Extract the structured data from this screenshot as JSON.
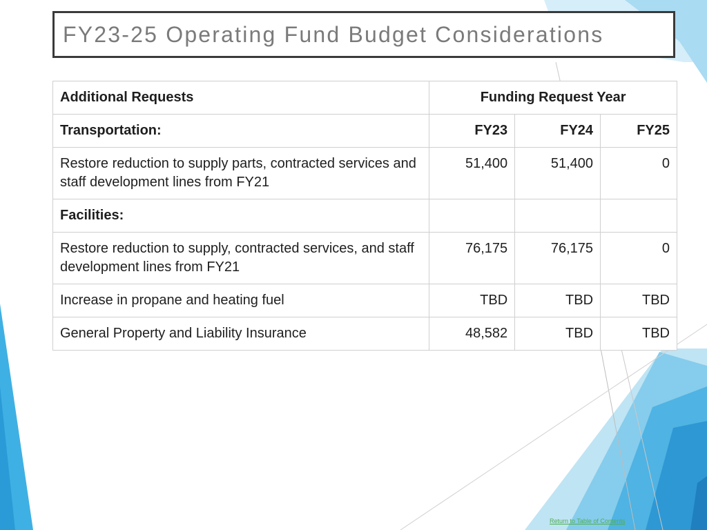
{
  "title": "FY23-25 Operating Fund Budget Considerations",
  "table": {
    "header": {
      "col1": "Additional Requests",
      "col2": "Funding Request Year"
    },
    "rows": [
      {
        "label": "Transportation:",
        "bold": true,
        "fy23": "FY23",
        "fy24": "FY24",
        "fy25": "FY25"
      },
      {
        "label": "Restore reduction to supply parts, contracted services and staff development lines from FY21",
        "fy23": "51,400",
        "fy24": "51,400",
        "fy25": "0"
      },
      {
        "label": "Facilities:",
        "bold": true,
        "fy23": "",
        "fy24": "",
        "fy25": ""
      },
      {
        "label": "Restore reduction to supply, contracted services, and staff development lines from FY21",
        "fy23": "76,175",
        "fy24": "76,175",
        "fy25": "0"
      },
      {
        "label": "Increase in propane and heating fuel",
        "fy23": "TBD",
        "fy24": "TBD",
        "fy25": "TBD"
      },
      {
        "label": "General Property and Liability Insurance",
        "fy23": "48,582",
        "fy24": "TBD",
        "fy25": "TBD"
      }
    ]
  },
  "footer_link": "Return to Table of Contents",
  "colors": {
    "accent_light": "#bfe4f4",
    "accent_mid": "#5ab9e6",
    "accent_dark": "#2a8fcf",
    "title_text": "#7a7a7a",
    "footer_link": "#4fae4f"
  }
}
